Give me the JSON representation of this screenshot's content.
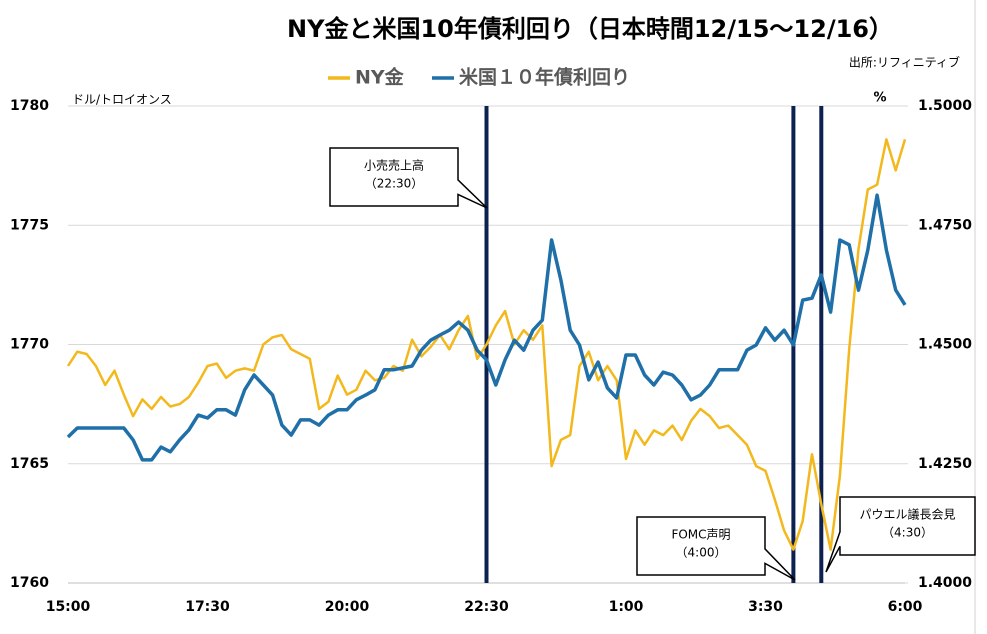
{
  "chart_data": {
    "type": "line",
    "title": "NY金と米国10年債利回り（日本時間12/15～12/16）",
    "source": "出所:リフィニティブ",
    "y_axis_label": "ドル/トロイオンス",
    "y2_axis_label": "%",
    "categories": [
      "15:00",
      null,
      null,
      null,
      null,
      null,
      null,
      null,
      null,
      null,
      null,
      null,
      null,
      null,
      null,
      "17:30",
      null,
      null,
      null,
      null,
      null,
      null,
      null,
      null,
      null,
      null,
      null,
      null,
      null,
      null,
      "20:00",
      null,
      null,
      null,
      null,
      null,
      null,
      null,
      null,
      null,
      null,
      null,
      null,
      null,
      null,
      "22:30",
      null,
      null,
      null,
      null,
      null,
      null,
      null,
      null,
      null,
      null,
      null,
      null,
      null,
      null,
      "1:00",
      null,
      null,
      null,
      null,
      null,
      null,
      null,
      null,
      null,
      null,
      null,
      null,
      null,
      null,
      "3:30",
      null,
      null,
      null,
      null,
      null,
      null,
      null,
      null,
      null,
      null,
      null,
      null,
      null,
      null,
      "6:00"
    ],
    "ylim": [
      1760,
      1780
    ],
    "yticks": [
      1760,
      1765,
      1770,
      1775,
      1780
    ],
    "y2lim": [
      1.4,
      1.5
    ],
    "y2ticks": [
      {
        "value": 1.4,
        "label": "1.4000"
      },
      {
        "value": 1.425,
        "label": "1.4250"
      },
      {
        "value": 1.45,
        "label": "1.4500"
      },
      {
        "value": 1.475,
        "label": "1.4750"
      },
      {
        "value": 1.5,
        "label": "1.5000"
      }
    ],
    "grid": true,
    "legend": "top",
    "series": [
      {
        "name": "NY金",
        "color": "#f2b81c",
        "values": [
          1769.1,
          1769.7,
          1769.6,
          1769.1,
          1768.3,
          1768.9,
          1767.9,
          1767.0,
          1767.7,
          1767.3,
          1767.8,
          1767.4,
          1767.5,
          1767.8,
          1768.4,
          1769.1,
          1769.2,
          1768.6,
          1768.9,
          1769.0,
          1768.9,
          1770.0,
          1770.3,
          1770.4,
          1769.8,
          1769.6,
          1769.4,
          1767.3,
          1767.6,
          1768.7,
          1767.9,
          1768.1,
          1768.9,
          1768.5,
          1768.6,
          1769.1,
          1768.9,
          1770.2,
          1769.5,
          1769.9,
          1770.4,
          1769.8,
          1770.6,
          1771.2,
          1769.4,
          1770.0,
          1770.8,
          1771.4,
          1770.0,
          1770.6,
          1770.2,
          1770.8,
          1764.9,
          1766.0,
          1766.2,
          1769.1,
          1769.7,
          1768.5,
          1769.1,
          1768.5,
          1765.2,
          1766.4,
          1765.8,
          1766.4,
          1766.2,
          1766.6,
          1766.0,
          1766.8,
          1767.3,
          1767.0,
          1766.5,
          1766.6,
          1766.2,
          1765.8,
          1764.9,
          1764.7,
          1763.5,
          1762.2,
          1761.4,
          1762.6,
          1765.4,
          1763.3,
          1761.4,
          1764.5,
          1769.8,
          1774.0,
          1776.5,
          1776.7,
          1778.6,
          1777.3,
          1778.6
        ]
      },
      {
        "name": "米国１０年債利回り",
        "color": "#1f6fa8",
        "axis": "y2",
        "values": [
          1.4306,
          1.4325,
          1.4325,
          1.4325,
          1.4325,
          1.4325,
          1.4325,
          1.43,
          1.4258,
          1.4258,
          1.4285,
          1.4275,
          1.43,
          1.4321,
          1.4352,
          1.4346,
          1.4363,
          1.4363,
          1.4352,
          1.4405,
          1.4436,
          1.4415,
          1.4394,
          1.4331,
          1.431,
          1.4342,
          1.4342,
          1.4331,
          1.4352,
          1.4363,
          1.4363,
          1.4384,
          1.4394,
          1.4405,
          1.4447,
          1.4447,
          1.4451,
          1.4455,
          1.4488,
          1.4509,
          1.452,
          1.453,
          1.4547,
          1.453,
          1.4488,
          1.4468,
          1.4415,
          1.4468,
          1.4509,
          1.4488,
          1.453,
          1.4551,
          1.4719,
          1.4635,
          1.453,
          1.4499,
          1.4426,
          1.4463,
          1.4409,
          1.4388,
          1.4478,
          1.4478,
          1.4436,
          1.4415,
          1.4442,
          1.4436,
          1.4415,
          1.4384,
          1.4394,
          1.4415,
          1.4447,
          1.4447,
          1.4447,
          1.4488,
          1.4499,
          1.4535,
          1.4509,
          1.453,
          1.4499,
          1.4593,
          1.4597,
          1.4646,
          1.4568,
          1.4719,
          1.4709,
          1.4614,
          1.4698,
          1.4813,
          1.4698,
          1.4614,
          1.4583
        ]
      }
    ],
    "events": [
      {
        "label": "小売売上高",
        "time": "（22:30）"
      },
      {
        "label": "FOMC声明",
        "time": "（4:00）"
      },
      {
        "label": "パウエル議長会見",
        "time": "（4:30）"
      }
    ]
  }
}
